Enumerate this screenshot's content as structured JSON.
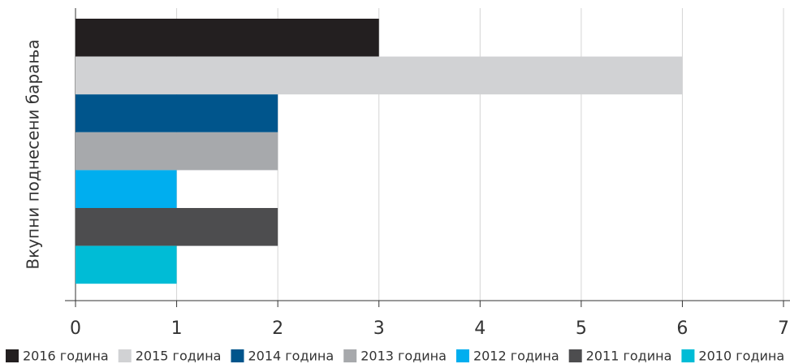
{
  "chart_data": {
    "type": "hbar_grouped",
    "y_label": "Вкупни поднесени барања",
    "xlim": [
      0,
      7
    ],
    "xticks": [
      0,
      1,
      2,
      3,
      4,
      5,
      6,
      7
    ],
    "grid": true,
    "series": [
      {
        "name": "2016 година",
        "color": "#231f20",
        "values": [
          3
        ]
      },
      {
        "name": "2015 година",
        "color": "#d1d2d4",
        "values": [
          6
        ]
      },
      {
        "name": "2014 година",
        "color": "#00558c",
        "values": [
          2
        ]
      },
      {
        "name": "2013 година",
        "color": "#a7a9ac",
        "values": [
          2
        ]
      },
      {
        "name": "2012 година",
        "color": "#00aeef",
        "values": [
          1
        ]
      },
      {
        "name": "2011 година",
        "color": "#4d4d4f",
        "values": [
          2
        ]
      },
      {
        "name": "2010 година",
        "color": "#00bcd6",
        "values": [
          1
        ]
      }
    ]
  }
}
